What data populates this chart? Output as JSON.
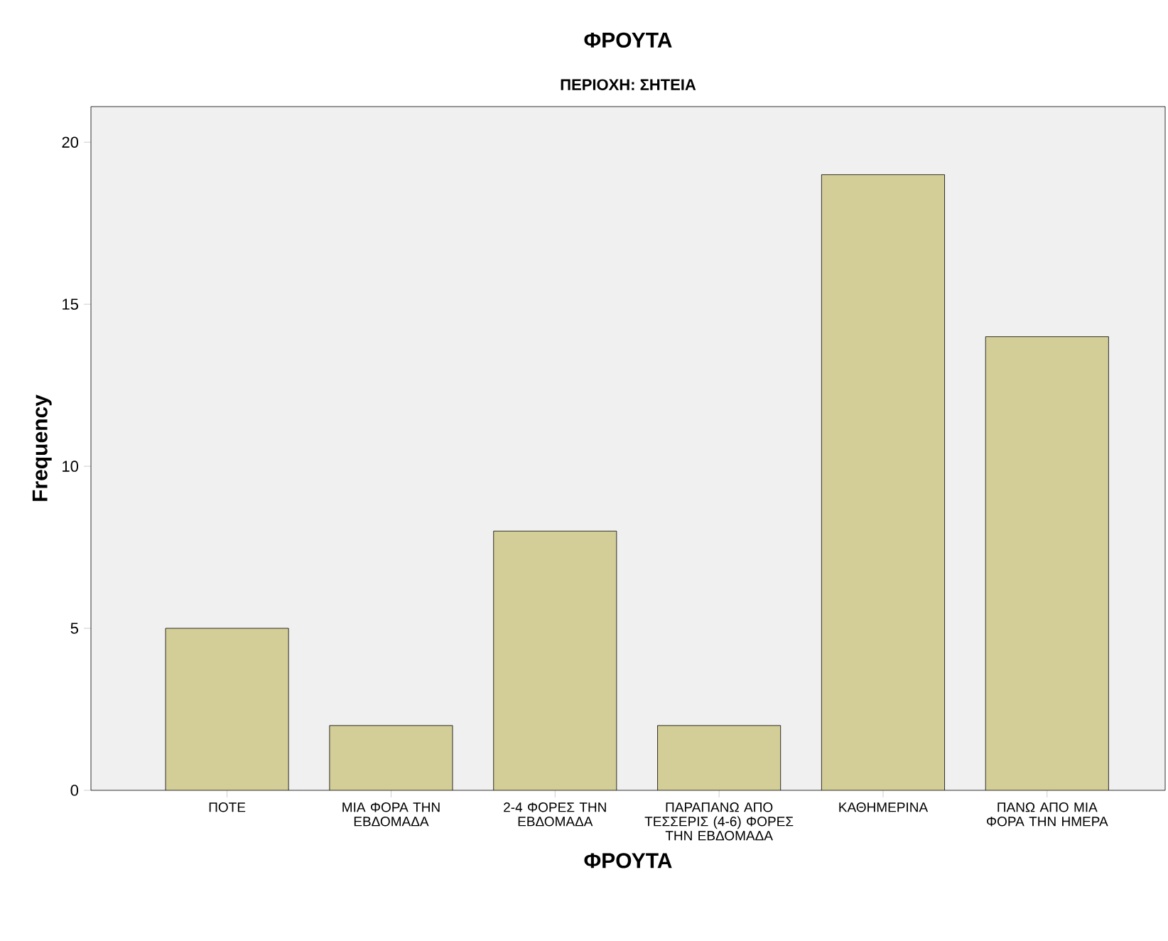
{
  "chart_data": {
    "type": "bar",
    "title": "ΦΡΟΥΤΑ",
    "subtitle": "ΠΕΡΙΟΧΗ: ΣΗΤΕΙΑ",
    "xlabel": "ΦΡΟΥΤΑ",
    "ylabel": "Frequency",
    "categories": [
      "ΠΟΤΕ",
      "ΜΙΑ ΦΟΡΑ ΤΗΝ ΕΒΔΟΜΑΔΑ",
      "2-4 ΦΟΡΕΣ ΤΗΝ ΕΒΔΟΜΑΔΑ",
      "ΠΑΡΑΠΑΝΩ ΑΠΟ ΤΕΣΣΕΡΙΣ (4-6) ΦΟΡΕΣ ΤΗΝ ΕΒΔΟΜΑΔΑ",
      "ΚΑΘΗΜΕΡΙΝΑ",
      "ΠΑΝΩ ΑΠΟ ΜΙΑ ΦΟΡΑ ΤΗΝ ΗΜΕΡΑ"
    ],
    "values": [
      5,
      2,
      8,
      2,
      19,
      14
    ],
    "color": "#d3ce97",
    "ylim": [
      0,
      21.1
    ],
    "yticks": [
      0,
      5,
      10,
      15,
      20
    ],
    "grid": false
  }
}
